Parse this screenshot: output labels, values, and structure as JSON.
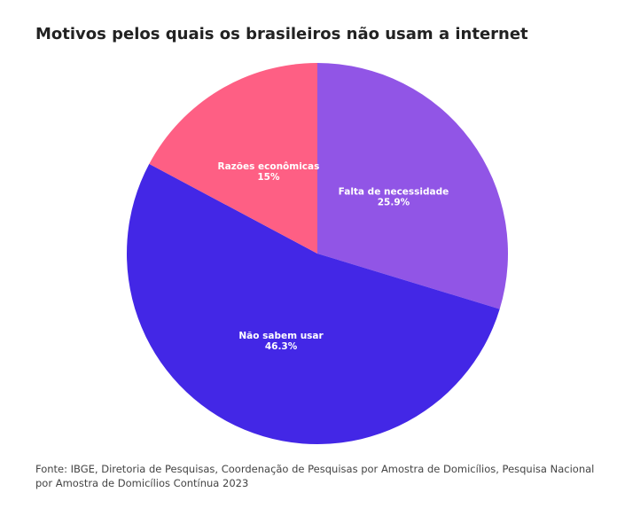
{
  "chart_data": {
    "type": "pie",
    "title": "Motivos pelos quais os brasileiros não usam a internet",
    "categories": [
      "Falta de necessidade",
      "Não sabem usar",
      "Razões econômicas"
    ],
    "values": [
      25.9,
      46.3,
      15
    ],
    "value_labels": [
      "25.9%",
      "46.3%",
      "15%"
    ],
    "colors": [
      "#9155e6",
      "#4327e6",
      "#fe5f84"
    ],
    "source": "Fonte: IBGE, Diretoria de Pesquisas, Coordenação de Pesquisas por Amostra de Domicílios, Pesquisa Nacional por Amostra de Domicílios Contínua 2023"
  }
}
